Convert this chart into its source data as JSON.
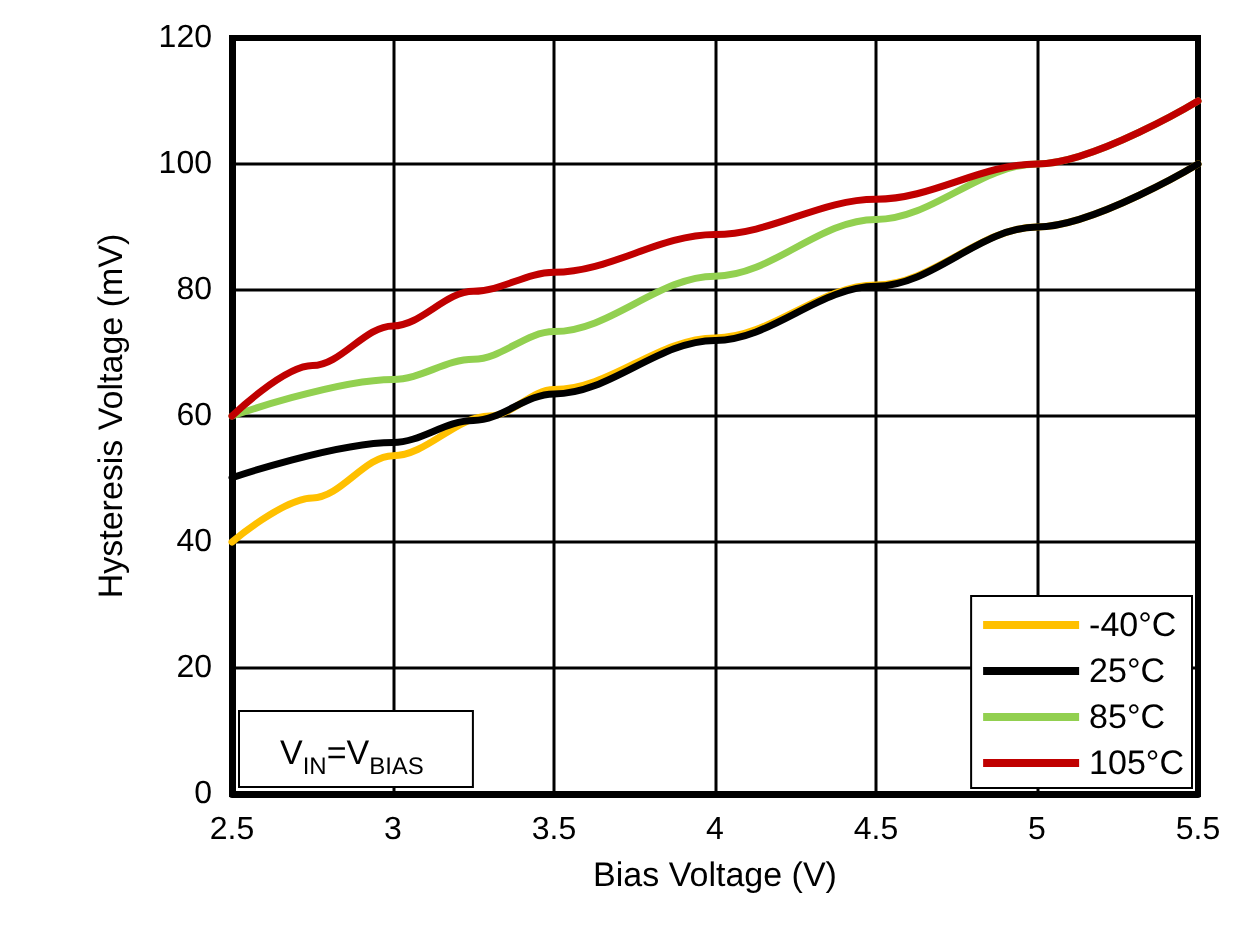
{
  "chart_data": {
    "type": "line",
    "xlabel": "Bias Voltage (V)",
    "ylabel": "Hysteresis Voltage (mV)",
    "annotations": [
      "V$_{IN}$=V$_{BIAS}$"
    ],
    "xlim": [
      2.5,
      5.5
    ],
    "xticks": [
      2.5,
      3,
      3.5,
      4,
      4.5,
      5,
      5.5
    ],
    "ylim": [
      0,
      120
    ],
    "yticks": [
      0,
      20,
      40,
      60,
      80,
      100,
      120
    ],
    "grid": true,
    "legend": "bottom right",
    "marker": "none",
    "line_style": "solid",
    "series": [
      {
        "name": "-40°C",
        "color": "#ffc000",
        "x": [
          2.5,
          2.75,
          3,
          3.3,
          3.5,
          4,
          4.5,
          5,
          5.5
        ],
        "values": [
          40,
          47,
          53.7,
          60,
          64.2,
          72.4,
          80.8,
          90,
          100
        ]
      },
      {
        "name": "25°C",
        "color": "#000000",
        "x": [
          2.5,
          3,
          3.25,
          3.5,
          4,
          4.5,
          5,
          5.5
        ],
        "values": [
          50.2,
          55.8,
          59.3,
          63.5,
          72,
          80.6,
          90,
          100
        ]
      },
      {
        "name": "85°C",
        "color": "#92d050",
        "x": [
          2.5,
          3,
          3.25,
          3.5,
          4,
          4.5,
          5,
          5.5
        ],
        "values": [
          60,
          65.8,
          69,
          73.4,
          82.2,
          91.2,
          100,
          110
        ]
      },
      {
        "name": "105°C",
        "color": "#c00000",
        "x": [
          2.5,
          2.75,
          3,
          3.25,
          3.5,
          4,
          4.5,
          5,
          5.5
        ],
        "values": [
          60,
          68,
          74.3,
          79.8,
          82.8,
          88.8,
          94.4,
          100,
          110
        ]
      }
    ]
  }
}
